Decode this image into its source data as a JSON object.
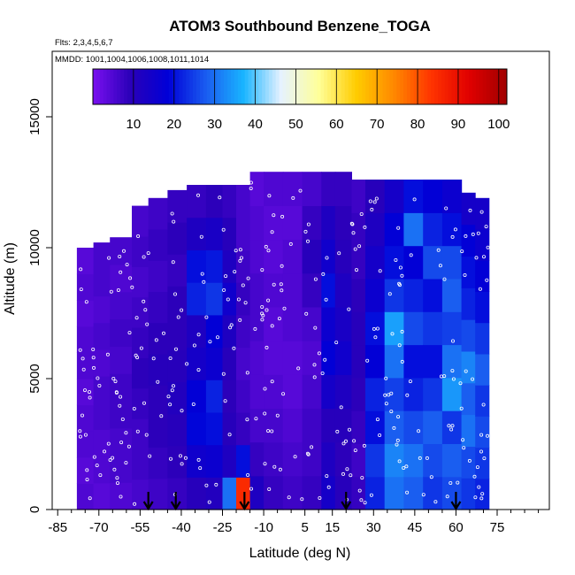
{
  "chart_data": {
    "type": "heatmap",
    "title": "ATOM3 Southbound Benzene_TOGA",
    "flights_note": "Flts: 2,3,4,5,6,7",
    "dates_note": "MMDD: 1001,1004,1006,1008,1011,1014",
    "xlabel": "Latitude (deg N)",
    "ylabel": "Altitude (m)",
    "xlim": [
      -87,
      94
    ],
    "ylim": [
      0,
      17500
    ],
    "x_ticks": [
      -85,
      -70,
      -55,
      -40,
      -25,
      -10,
      5,
      15,
      30,
      45,
      60,
      75
    ],
    "y_ticks": [
      0,
      5000,
      10000,
      15000
    ],
    "colorbar": {
      "range": [
        0,
        102
      ],
      "ticks": [
        10,
        20,
        30,
        40,
        50,
        60,
        70,
        80,
        90,
        100
      ],
      "colors": [
        "#7a10f0",
        "#2a00b8",
        "#0000d8",
        "#1a5cf0",
        "#19b4ff",
        "#e6f2ff",
        "#ffff99",
        "#ffcc00",
        "#ff8800",
        "#ff3300",
        "#e00000",
        "#a00000"
      ]
    },
    "arrow_latitudes": [
      -52,
      -42,
      -17,
      20,
      60
    ],
    "columns": [
      {
        "x0": -78,
        "x1": -72,
        "top": 10000,
        "values": [
          5,
          4,
          5,
          5,
          4,
          5,
          5,
          4,
          5,
          4
        ]
      },
      {
        "x0": -72,
        "x1": -66,
        "top": 10200,
        "values": [
          4,
          5,
          5,
          6,
          6,
          5,
          6,
          5,
          6,
          6
        ]
      },
      {
        "x0": -66,
        "x1": -58,
        "top": 10400,
        "values": [
          5,
          6,
          6,
          7,
          7,
          6,
          7,
          6,
          5,
          6
        ]
      },
      {
        "x0": -58,
        "x1": -52,
        "top": 11600,
        "values": [
          6,
          7,
          7,
          8,
          9,
          8,
          7,
          6,
          7,
          6
        ]
      },
      {
        "x0": -52,
        "x1": -45,
        "top": 11900,
        "values": [
          7,
          8,
          9,
          9,
          10,
          9,
          8,
          7,
          8,
          7
        ]
      },
      {
        "x0": -45,
        "x1": -38,
        "top": 12200,
        "values": [
          8,
          9,
          10,
          11,
          10,
          9,
          9,
          8,
          9,
          8
        ]
      },
      {
        "x0": -38,
        "x1": -31,
        "top": 12400,
        "values": [
          10,
          15,
          19,
          18,
          14,
          12,
          22,
          20,
          12,
          8
        ]
      },
      {
        "x0": -31,
        "x1": -25,
        "top": 12400,
        "values": [
          11,
          16,
          20,
          22,
          16,
          18,
          24,
          21,
          13,
          9
        ]
      },
      {
        "x0": -25,
        "x1": -20,
        "top": 12400,
        "values": [
          30,
          12,
          10,
          9,
          10,
          12,
          15,
          12,
          10,
          8
        ]
      },
      {
        "x0": -20,
        "x1": -15,
        "top": 12400,
        "values": [
          85,
          20,
          8,
          7,
          6,
          7,
          8,
          7,
          6,
          6
        ]
      },
      {
        "x0": -15,
        "x1": -10,
        "top": 12900,
        "values": [
          12,
          8,
          6,
          5,
          5,
          6,
          6,
          5,
          5,
          4
        ]
      },
      {
        "x0": -10,
        "x1": -3,
        "top": 12900,
        "values": [
          8,
          7,
          6,
          5,
          4,
          4,
          5,
          4,
          4,
          5
        ]
      },
      {
        "x0": -3,
        "x1": 4,
        "top": 12900,
        "values": [
          7,
          6,
          5,
          4,
          4,
          5,
          5,
          5,
          4,
          5
        ]
      },
      {
        "x0": 4,
        "x1": 11,
        "top": 12900,
        "values": [
          8,
          7,
          7,
          6,
          5,
          6,
          8,
          10,
          8,
          6
        ]
      },
      {
        "x0": 11,
        "x1": 16,
        "top": 12900,
        "values": [
          14,
          12,
          10,
          14,
          18,
          16,
          20,
          15,
          12,
          8
        ]
      },
      {
        "x0": 16,
        "x1": 22,
        "top": 12900,
        "values": [
          10,
          9,
          10,
          12,
          15,
          13,
          12,
          10,
          9,
          8
        ]
      },
      {
        "x0": 22,
        "x1": 27,
        "top": 12600,
        "values": [
          8,
          7,
          8,
          9,
          10,
          10,
          9,
          8,
          8,
          7
        ]
      },
      {
        "x0": 27,
        "x1": 34,
        "top": 12600,
        "values": [
          22,
          24,
          20,
          22,
          18,
          20,
          16,
          14,
          12,
          10
        ]
      },
      {
        "x0": 34,
        "x1": 41,
        "top": 12600,
        "values": [
          30,
          32,
          28,
          25,
          30,
          35,
          24,
          20,
          18,
          14
        ]
      },
      {
        "x0": 41,
        "x1": 48,
        "top": 12600,
        "values": [
          28,
          30,
          26,
          22,
          20,
          26,
          22,
          18,
          30,
          20
        ]
      },
      {
        "x0": 48,
        "x1": 55,
        "top": 12600,
        "values": [
          24,
          26,
          28,
          24,
          20,
          24,
          20,
          26,
          22,
          18
        ]
      },
      {
        "x0": 55,
        "x1": 62,
        "top": 12600,
        "values": [
          26,
          28,
          24,
          34,
          30,
          25,
          28,
          26,
          20,
          16
        ]
      },
      {
        "x0": 62,
        "x1": 67,
        "top": 12100,
        "values": [
          24,
          26,
          30,
          28,
          32,
          26,
          22,
          20,
          18,
          14
        ]
      },
      {
        "x0": 67,
        "x1": 72,
        "top": 11900,
        "values": [
          22,
          24,
          26,
          24,
          28,
          24,
          20,
          18,
          16,
          14
        ]
      }
    ]
  }
}
